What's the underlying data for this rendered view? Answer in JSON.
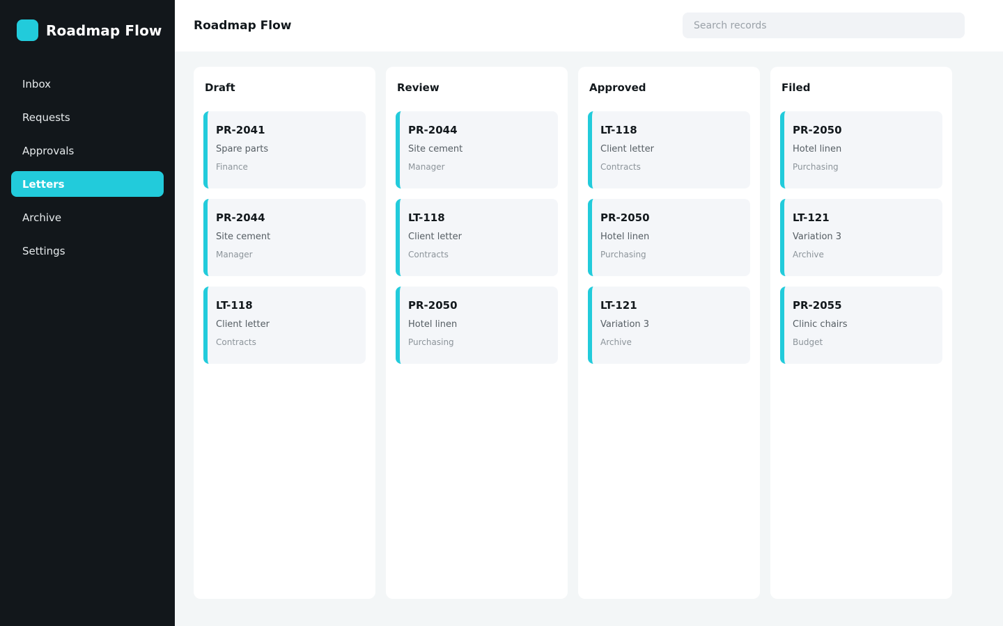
{
  "app": {
    "name": "Roadmap Flow"
  },
  "sidebar": {
    "items": [
      {
        "label": "Inbox",
        "active": false
      },
      {
        "label": "Requests",
        "active": false
      },
      {
        "label": "Approvals",
        "active": false
      },
      {
        "label": "Letters",
        "active": true
      },
      {
        "label": "Archive",
        "active": false
      },
      {
        "label": "Settings",
        "active": false
      }
    ]
  },
  "header": {
    "title": "Roadmap Flow",
    "search_placeholder": "Search records"
  },
  "colors": {
    "accent": "#22cbdb",
    "sidebar_bg": "#12171b",
    "card_bg": "#f4f6f9"
  },
  "board": {
    "columns": [
      {
        "title": "Draft",
        "cards": [
          {
            "id": "PR-2041",
            "title": "Spare parts",
            "meta": "Finance"
          },
          {
            "id": "PR-2044",
            "title": "Site cement",
            "meta": "Manager"
          },
          {
            "id": "LT-118",
            "title": "Client letter",
            "meta": "Contracts"
          }
        ]
      },
      {
        "title": "Review",
        "cards": [
          {
            "id": "PR-2044",
            "title": "Site cement",
            "meta": "Manager"
          },
          {
            "id": "LT-118",
            "title": "Client letter",
            "meta": "Contracts"
          },
          {
            "id": "PR-2050",
            "title": "Hotel linen",
            "meta": "Purchasing"
          }
        ]
      },
      {
        "title": "Approved",
        "cards": [
          {
            "id": "LT-118",
            "title": "Client letter",
            "meta": "Contracts"
          },
          {
            "id": "PR-2050",
            "title": "Hotel linen",
            "meta": "Purchasing"
          },
          {
            "id": "LT-121",
            "title": "Variation 3",
            "meta": "Archive"
          }
        ]
      },
      {
        "title": "Filed",
        "cards": [
          {
            "id": "PR-2050",
            "title": "Hotel linen",
            "meta": "Purchasing"
          },
          {
            "id": "LT-121",
            "title": "Variation 3",
            "meta": "Archive"
          },
          {
            "id": "PR-2055",
            "title": "Clinic chairs",
            "meta": "Budget"
          }
        ]
      }
    ]
  }
}
